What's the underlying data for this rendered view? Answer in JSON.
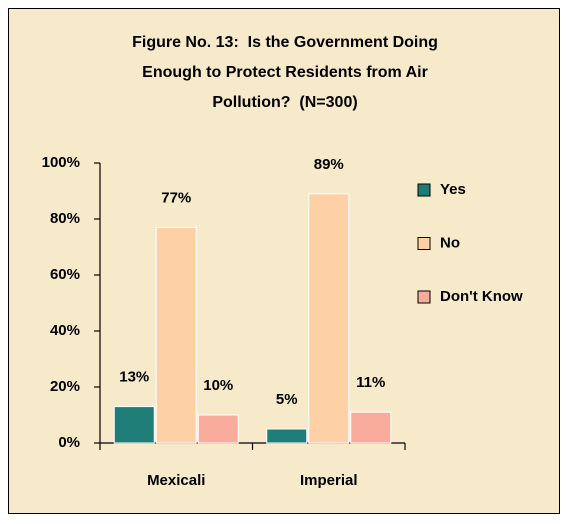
{
  "chart_data": {
    "type": "bar",
    "title": "Figure No. 13:  Is the Government Doing Enough to Protect Residents from Air Pollution?  (N=300)",
    "categories": [
      "Mexicali",
      "Imperial"
    ],
    "series": [
      {
        "name": "Yes",
        "color": "#1f7d78",
        "values": [
          13,
          5
        ],
        "value_labels": [
          "13%",
          "5%"
        ]
      },
      {
        "name": "No",
        "color": "#fdd0a6",
        "values": [
          77,
          89
        ],
        "value_labels": [
          "77%",
          "89%"
        ]
      },
      {
        "name": "Don't Know",
        "color": "#f9ab9c",
        "values": [
          10,
          11
        ],
        "value_labels": [
          "10%",
          "11%"
        ]
      }
    ],
    "ylim": [
      0,
      100
    ],
    "yticks": [
      {
        "value": 0,
        "label": "0%"
      },
      {
        "value": 20,
        "label": "20%"
      },
      {
        "value": 40,
        "label": "40%"
      },
      {
        "value": 60,
        "label": "60%"
      },
      {
        "value": 80,
        "label": "80%"
      },
      {
        "value": 100,
        "label": "100%"
      }
    ],
    "grid": false,
    "legend": "right"
  }
}
